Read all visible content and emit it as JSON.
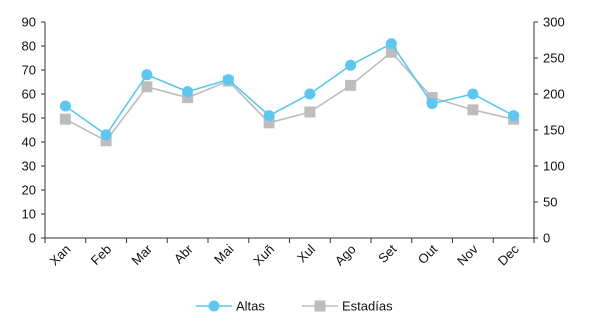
{
  "chart_data": {
    "type": "line",
    "categories": [
      "Xan",
      "Feb",
      "Mar",
      "Abr",
      "Mai",
      "Xuñ",
      "Xul",
      "Ago",
      "Set",
      "Out",
      "Nov",
      "Dec"
    ],
    "series": [
      {
        "name": "Altas",
        "axis": "left",
        "color": "#5BC8F2",
        "marker": "circle",
        "values": [
          55,
          43,
          68,
          61,
          66,
          51,
          60,
          72,
          81,
          56,
          60,
          51
        ]
      },
      {
        "name": "Estadías",
        "axis": "right",
        "color": "#BDBDBD",
        "marker": "square",
        "values": [
          165,
          135,
          210,
          195,
          218,
          160,
          175,
          212,
          258,
          195,
          178,
          165
        ]
      }
    ],
    "y_left": {
      "min": 0,
      "max": 90,
      "step": 10
    },
    "y_right": {
      "min": 0,
      "max": 300,
      "step": 50
    },
    "grid": false,
    "legend_position": "bottom",
    "axis_color": "#333333"
  }
}
